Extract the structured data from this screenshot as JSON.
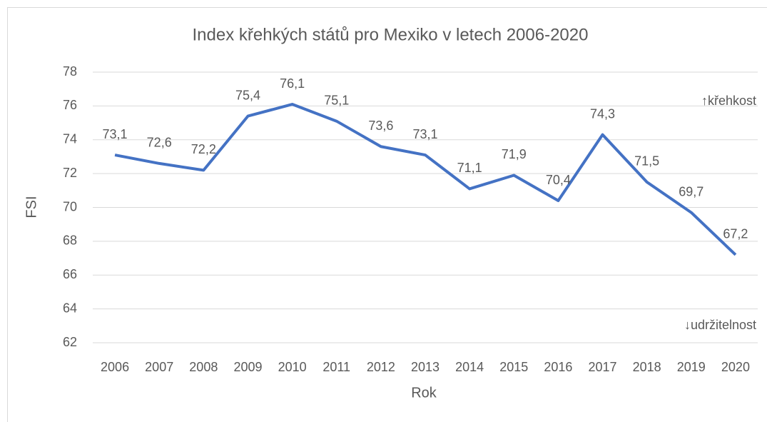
{
  "chart_data": {
    "type": "line",
    "title": "Index křehkých států pro Mexiko v letech 2006-2020",
    "x_label": "Rok",
    "y_label": "FSI",
    "annotations": [
      "↑křehkost",
      "↓udržitelnost"
    ],
    "categories": [
      "2006",
      "2007",
      "2008",
      "2009",
      "2010",
      "2011",
      "2012",
      "2013",
      "2014",
      "2015",
      "2016",
      "2017",
      "2018",
      "2019",
      "2020"
    ],
    "series": [
      {
        "name": "FSI",
        "color": "#4472c4",
        "values": [
          73.1,
          72.6,
          72.2,
          75.4,
          76.1,
          75.1,
          73.6,
          73.1,
          71.1,
          71.9,
          70.4,
          74.3,
          71.5,
          69.7,
          67.2
        ],
        "value_labels": [
          "73,1",
          "72,6",
          "72,2",
          "75,4",
          "76,1",
          "75,1",
          "73,6",
          "73,1",
          "71,1",
          "71,9",
          "70,4",
          "74,3",
          "71,5",
          "69,7",
          "67,2"
        ]
      }
    ],
    "ylim": [
      62,
      78
    ],
    "yticks": [
      62,
      64,
      66,
      68,
      70,
      72,
      74,
      76,
      78
    ],
    "grid": true
  }
}
